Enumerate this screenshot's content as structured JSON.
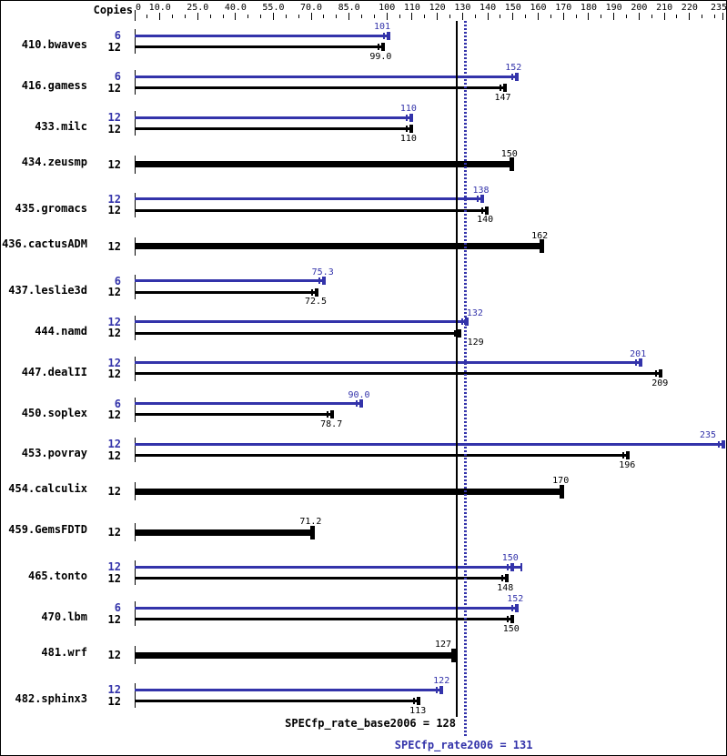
{
  "chart_data": {
    "type": "bar",
    "orientation": "horizontal",
    "copies_header": "Copies",
    "axis": {
      "min": 0,
      "max": 235,
      "grid": false,
      "labeled_ticks": [
        {
          "value": 0,
          "label": "0"
        },
        {
          "value": 10,
          "label": "10.0"
        },
        {
          "value": 25,
          "label": "25.0"
        },
        {
          "value": 40,
          "label": "40.0"
        },
        {
          "value": 55,
          "label": "55.0"
        },
        {
          "value": 70,
          "label": "70.0"
        },
        {
          "value": 85,
          "label": "85.0"
        },
        {
          "value": 100,
          "label": "100"
        },
        {
          "value": 110,
          "label": "110"
        },
        {
          "value": 120,
          "label": "120"
        },
        {
          "value": 130,
          "label": "130"
        },
        {
          "value": 140,
          "label": "140"
        },
        {
          "value": 150,
          "label": "150"
        },
        {
          "value": 160,
          "label": "160"
        },
        {
          "value": 170,
          "label": "170"
        },
        {
          "value": 180,
          "label": "180"
        },
        {
          "value": 190,
          "label": "190"
        },
        {
          "value": 200,
          "label": "200"
        },
        {
          "value": 210,
          "label": "210"
        },
        {
          "value": 220,
          "label": "220"
        },
        {
          "value": 235,
          "label": "235"
        }
      ],
      "minor_tick_step": 5
    },
    "benchmarks": [
      {
        "name": "410.bwaves",
        "bars": [
          {
            "series": "peak",
            "copies": "6",
            "value": 101,
            "label": "101",
            "label_dx": -8
          },
          {
            "series": "base",
            "copies": "12",
            "value": 99,
            "label": "99.0",
            "label_dx": -4
          }
        ]
      },
      {
        "name": "416.gamess",
        "bars": [
          {
            "series": "peak",
            "copies": "6",
            "value": 152,
            "label": "152",
            "label_dx": -5
          },
          {
            "series": "base",
            "copies": "12",
            "value": 147,
            "label": "147",
            "label_dx": -3
          }
        ]
      },
      {
        "name": "433.milc",
        "bars": [
          {
            "series": "peak",
            "copies": "12",
            "value": 110,
            "label": "110",
            "label_dx": -4
          },
          {
            "series": "base",
            "copies": "12",
            "value": 110,
            "label": "110",
            "label_dx": -4
          }
        ]
      },
      {
        "name": "434.zeusmp",
        "bars": [
          {
            "series": "base",
            "copies": "12",
            "value": 150,
            "label": "150",
            "emphasized": true,
            "label_dx": -4
          }
        ]
      },
      {
        "name": "435.gromacs",
        "bars": [
          {
            "series": "peak",
            "copies": "12",
            "value": 138,
            "label": "138",
            "label_dx": -2
          },
          {
            "series": "base",
            "copies": "12",
            "value": 140,
            "label": "140",
            "label_dx": -3
          }
        ]
      },
      {
        "name": "436.cactusADM",
        "bars": [
          {
            "series": "base",
            "copies": "12",
            "value": 162,
            "label": "162",
            "emphasized": true,
            "label_dx": -4
          }
        ]
      },
      {
        "name": "437.leslie3d",
        "bars": [
          {
            "series": "peak",
            "copies": "6",
            "value": 75.3,
            "label": "75.3",
            "label_dx": -2
          },
          {
            "series": "base",
            "copies": "12",
            "value": 72.5,
            "label": "72.5",
            "label_dx": -2
          }
        ]
      },
      {
        "name": "444.namd",
        "bars": [
          {
            "series": "peak",
            "copies": "12",
            "value": 132,
            "label": "132",
            "label_dx": 8
          },
          {
            "series": "base",
            "copies": "12",
            "value": 129,
            "label": "129",
            "label_dx": 17
          }
        ]
      },
      {
        "name": "447.dealII",
        "bars": [
          {
            "series": "peak",
            "copies": "12",
            "value": 201,
            "label": "201",
            "label_dx": -4
          },
          {
            "series": "base",
            "copies": "12",
            "value": 209,
            "label": "209",
            "label_dx": -2
          }
        ]
      },
      {
        "name": "450.soplex",
        "bars": [
          {
            "series": "peak",
            "copies": "6",
            "value": 90,
            "label": "90.0",
            "label_dx": -3
          },
          {
            "series": "base",
            "copies": "12",
            "value": 78.7,
            "label": "78.7",
            "label_dx": -2
          }
        ]
      },
      {
        "name": "453.povray",
        "bars": [
          {
            "series": "peak",
            "copies": "12",
            "value": 235,
            "label": "235",
            "label_dx": -13
          },
          {
            "series": "base",
            "copies": "12",
            "value": 196,
            "label": "196",
            "label_dx": -2
          }
        ]
      },
      {
        "name": "454.calculix",
        "bars": [
          {
            "series": "base",
            "copies": "12",
            "value": 170,
            "label": "170",
            "emphasized": true,
            "label_dx": -3
          }
        ]
      },
      {
        "name": "459.GemsFDTD",
        "bars": [
          {
            "series": "base",
            "copies": "12",
            "value": 71.2,
            "label": "71.2",
            "emphasized": true,
            "label_dx": -4
          }
        ]
      },
      {
        "name": "465.tonto",
        "bars": [
          {
            "series": "peak",
            "copies": "12",
            "value": 150,
            "label": "150",
            "label_dx": -3,
            "ext": 9
          },
          {
            "series": "base",
            "copies": "12",
            "value": 148,
            "label": "148",
            "label_dx": -3
          }
        ]
      },
      {
        "name": "470.lbm",
        "bars": [
          {
            "series": "peak",
            "copies": "6",
            "value": 152,
            "label": "152",
            "label_dx": -3
          },
          {
            "series": "base",
            "copies": "12",
            "value": 150,
            "label": "150",
            "label_dx": -2
          }
        ]
      },
      {
        "name": "481.wrf",
        "bars": [
          {
            "series": "base",
            "copies": "12",
            "value": 127,
            "label": "127",
            "emphasized": true,
            "label_dx": -13
          }
        ]
      },
      {
        "name": "482.sphinx3",
        "bars": [
          {
            "series": "peak",
            "copies": "12",
            "value": 122,
            "label": "122",
            "label_dx": -1
          },
          {
            "series": "base",
            "copies": "12",
            "value": 113,
            "label": "113",
            "label_dx": -2
          }
        ]
      }
    ],
    "reference_lines": [
      {
        "name": "base",
        "label": "SPECfp_rate_base2006 = 128",
        "value": 128,
        "style": "solid"
      },
      {
        "name": "peak",
        "label": "SPECfp_rate2006 = 131",
        "value": 131,
        "style": "dotted"
      }
    ]
  },
  "colors": {
    "peak_blue": "#3333aa",
    "base_black": "#000000",
    "background": "#ffffff"
  }
}
